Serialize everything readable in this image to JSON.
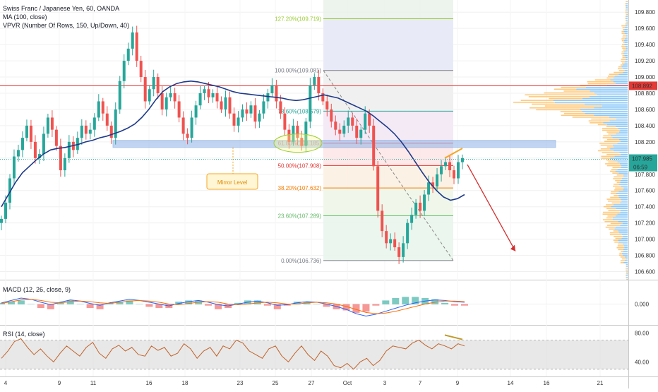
{
  "header": {
    "title": "Swiss Franc / Japanese Yen, 60, OANDA",
    "ma_label": "MA (100, close)",
    "vpvr_label": "VPVR (Number Of Rows, 150, Up/Down, 40)",
    "macd_label": "MACD (12, 26, close, 9)",
    "rsi_label": "RSI (14, close)"
  },
  "colors": {
    "up": "#26a69a",
    "down": "#ef5350",
    "ma": "#1e3a8a",
    "fib_zone": "#e8eaf6",
    "arrow": "#d32f2f",
    "vp_up": "#64b5f6",
    "vp_down": "#ffb74d",
    "mirror": "#90b4e8",
    "rsi_band": "#d9d9d9"
  },
  "chart_data": [
    {
      "type": "candlestick",
      "panel": "price",
      "x_ticks": [
        "4",
        "9",
        "11",
        "16",
        "18",
        "23",
        "25",
        "27",
        "Oct",
        "3",
        "7",
        "9",
        "14",
        "16",
        "21"
      ],
      "y_ticks": [
        "109.800",
        "109.600",
        "109.400",
        "109.200",
        "109.000",
        "108.800",
        "108.600",
        "108.400",
        "108.200",
        "108.000",
        "107.800",
        "107.600",
        "107.400",
        "107.200",
        "107.000",
        "106.800",
        "106.600"
      ],
      "ylim": [
        106.5,
        109.95
      ],
      "last_price": "107.985",
      "countdown": "06:59",
      "horizontal_line_price": "108.892",
      "fib_levels": [
        {
          "label": "127.20%(109.719)",
          "value": 109.719,
          "color": "#9acd32"
        },
        {
          "label": "100.00%(109.081)",
          "value": 109.081,
          "color": "#787b86"
        },
        {
          "label": "78.60%(108.579)",
          "value": 108.579,
          "color": "#26a69a"
        },
        {
          "label": "61.80%(108.185)",
          "value": 108.185,
          "color": "#ef5350"
        },
        {
          "label": "50.00%(107.908)",
          "value": 107.908,
          "color": "#e53935"
        },
        {
          "label": "38.20%(107.632)",
          "value": 107.632,
          "color": "#f57c00"
        },
        {
          "label": "23.60%(107.289)",
          "value": 107.289,
          "color": "#66bb6a"
        },
        {
          "label": "0.00%(106.736)",
          "value": 106.736,
          "color": "#787b86"
        }
      ],
      "mirror_level_label": "Mirror Level",
      "mirror_zone": [
        108.13,
        108.22
      ],
      "series_close": [
        107.25,
        107.45,
        107.75,
        108.02,
        108.1,
        108.25,
        108.4,
        108.2,
        108.0,
        108.05,
        108.3,
        108.5,
        108.35,
        108.15,
        107.85,
        108.0,
        108.2,
        108.1,
        108.25,
        108.4,
        108.3,
        108.35,
        108.5,
        108.7,
        108.55,
        108.4,
        108.25,
        108.6,
        108.95,
        109.2,
        109.35,
        109.55,
        109.2,
        109.0,
        108.7,
        108.85,
        109.0,
        108.8,
        108.6,
        108.75,
        108.8,
        108.7,
        108.5,
        108.3,
        108.25,
        108.5,
        108.65,
        108.8,
        108.85,
        108.75,
        108.8,
        108.7,
        108.6,
        108.75,
        108.55,
        108.4,
        108.5,
        108.6,
        108.55,
        108.65,
        108.45,
        108.55,
        108.7,
        108.8,
        108.9,
        108.7,
        108.55,
        108.35,
        108.2,
        108.4,
        108.25,
        108.15,
        108.45,
        108.9,
        109.0,
        108.8,
        108.7,
        108.6,
        108.45,
        108.35,
        108.3,
        108.4,
        108.5,
        108.4,
        108.25,
        108.35,
        108.55,
        108.4,
        107.9,
        107.35,
        107.1,
        106.95,
        107.0,
        106.9,
        106.78,
        106.95,
        107.2,
        107.3,
        107.45,
        107.35,
        107.55,
        107.7,
        107.65,
        107.8,
        107.9,
        107.95,
        107.85,
        107.75,
        107.95,
        108.0
      ],
      "ma_values": [
        107.4,
        107.55,
        107.7,
        107.82,
        107.9,
        107.98,
        108.05,
        108.1,
        108.12,
        108.13,
        108.15,
        108.17,
        108.2,
        108.22,
        108.25,
        108.27,
        108.3,
        108.33,
        108.37,
        108.42,
        108.5,
        108.6,
        108.72,
        108.82,
        108.88,
        108.92,
        108.94,
        108.95,
        108.94,
        108.92,
        108.9,
        108.88,
        108.85,
        108.82,
        108.8,
        108.79,
        108.78,
        108.77,
        108.76,
        108.75,
        108.74,
        108.72,
        108.71,
        108.72,
        108.74,
        108.76,
        108.78,
        108.76,
        108.74,
        108.7,
        108.66,
        108.62,
        108.58,
        108.52,
        108.45,
        108.38,
        108.3,
        108.2,
        108.08,
        107.95,
        107.82,
        107.7,
        107.6,
        107.52,
        107.48,
        107.5,
        107.55
      ],
      "projection_arrow": {
        "from": 107.92,
        "to": 106.8
      }
    },
    {
      "type": "line",
      "panel": "macd",
      "y_ticks": [
        "0.000"
      ],
      "series": [
        {
          "values": [
            0.02,
            0.06,
            0.1,
            0.08,
            0.03,
            -0.01,
            0.03,
            0.07,
            0.05,
            0.01,
            -0.02,
            0.02,
            0.05,
            0.08,
            0.06,
            0.03,
            0.0,
            -0.03,
            0.01,
            0.04,
            0.06,
            0.03,
            -0.01,
            -0.03,
            0.0,
            0.03,
            0.05,
            0.02,
            -0.02,
            -0.01,
            0.02,
            0.04,
            0.03,
            0.0,
            -0.04,
            -0.09,
            -0.16,
            -0.2,
            -0.17,
            -0.12,
            -0.07,
            -0.02,
            0.02,
            0.05,
            0.07,
            0.06,
            0.04,
            0.03
          ]
        },
        {
          "values": [
            0.01,
            0.04,
            0.07,
            0.08,
            0.06,
            0.03,
            0.02,
            0.04,
            0.05,
            0.04,
            0.02,
            0.01,
            0.03,
            0.05,
            0.06,
            0.05,
            0.03,
            0.0,
            -0.01,
            0.01,
            0.03,
            0.04,
            0.03,
            0.0,
            -0.01,
            0.0,
            0.02,
            0.03,
            0.02,
            0.0,
            0.0,
            0.02,
            0.03,
            0.02,
            0.0,
            -0.04,
            -0.09,
            -0.14,
            -0.16,
            -0.15,
            -0.12,
            -0.08,
            -0.04,
            0.0,
            0.03,
            0.05,
            0.05,
            0.04
          ]
        }
      ]
    },
    {
      "type": "line",
      "panel": "rsi",
      "y_ticks": [
        "80.00",
        "40.00"
      ],
      "band": [
        30,
        70
      ],
      "ylim": [
        20,
        90
      ],
      "series": [
        {
          "values": [
            45,
            55,
            68,
            72,
            60,
            50,
            58,
            48,
            40,
            52,
            62,
            55,
            48,
            60,
            67,
            52,
            45,
            58,
            63,
            55,
            60,
            50,
            48,
            62,
            56,
            60,
            48,
            52,
            65,
            58,
            45,
            55,
            60,
            48,
            62,
            58,
            70,
            66,
            55,
            50,
            45,
            58,
            62,
            48,
            40,
            52,
            62,
            50,
            42,
            55,
            48,
            35,
            32,
            38,
            30,
            40,
            45,
            35,
            42,
            55,
            62,
            60,
            58,
            66,
            70,
            63,
            58,
            65,
            62,
            58,
            65,
            62
          ]
        }
      ]
    }
  ]
}
